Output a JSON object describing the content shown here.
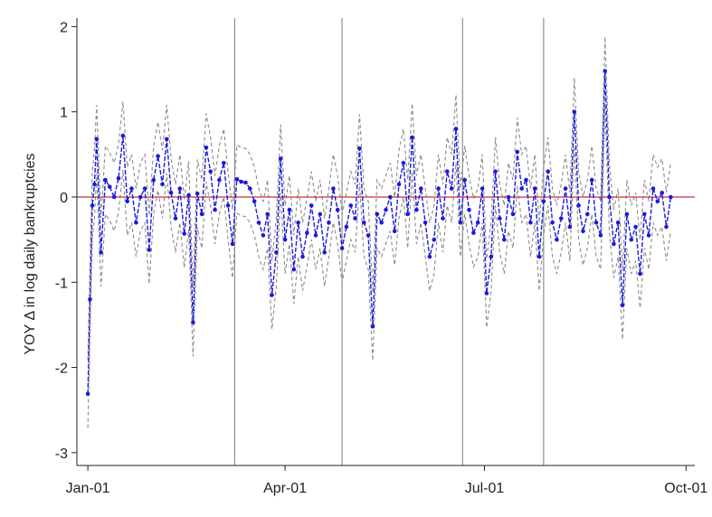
{
  "chart_data": {
    "type": "line",
    "title": "",
    "xlabel": "",
    "ylabel": "YOY Δ in log daily bankruptcies",
    "ylim": [
      -3.15,
      2.1
    ],
    "yticks": [
      -3,
      -2,
      -1,
      0,
      1,
      2
    ],
    "ytick_labels": [
      "-3",
      "-2",
      "-1",
      "0",
      "1",
      "2"
    ],
    "xlim": [
      "2000-12-27",
      "2001-10-05"
    ],
    "xticks": [
      "2001-01-01",
      "2001-04-01",
      "2001-07-01",
      "2001-10-01"
    ],
    "xtick_labels": [
      "Jan-01",
      "Apr-01",
      "Jul-01",
      "Oct-01"
    ],
    "reference_line": {
      "y": 0,
      "color": "#c8323c"
    },
    "vertical_lines": [
      "2001-03-09",
      "2001-04-27",
      "2001-06-21",
      "2001-07-28"
    ],
    "grid": false,
    "legend": "none",
    "series_style": [
      {
        "role": "estimate",
        "color": "#1a1adc",
        "line": "dashed",
        "markers": true
      },
      {
        "role": "confidence band",
        "color": "#8a8a8a",
        "line": "dashed",
        "markers": false
      }
    ],
    "confidence_halfwidth": 0.4,
    "series_points": [
      [
        "2001-01-01",
        -2.31
      ],
      [
        "2001-01-02",
        -1.2
      ],
      [
        "2001-01-03",
        -0.1
      ],
      [
        "2001-01-04",
        0.15
      ],
      [
        "2001-01-05",
        0.68
      ],
      [
        "2001-01-07",
        -0.65
      ],
      [
        "2001-01-09",
        0.2
      ],
      [
        "2001-01-11",
        0.12
      ],
      [
        "2001-01-13",
        0.0
      ],
      [
        "2001-01-15",
        0.22
      ],
      [
        "2001-01-17",
        0.72
      ],
      [
        "2001-01-19",
        -0.05
      ],
      [
        "2001-01-21",
        0.1
      ],
      [
        "2001-01-23",
        -0.3
      ],
      [
        "2001-01-25",
        0.0
      ],
      [
        "2001-01-27",
        0.1
      ],
      [
        "2001-01-29",
        -0.62
      ],
      [
        "2001-01-31",
        0.2
      ],
      [
        "2001-02-02",
        0.48
      ],
      [
        "2001-02-04",
        0.15
      ],
      [
        "2001-02-06",
        0.68
      ],
      [
        "2001-02-08",
        0.05
      ],
      [
        "2001-02-10",
        -0.25
      ],
      [
        "2001-02-12",
        0.1
      ],
      [
        "2001-02-14",
        -0.43
      ],
      [
        "2001-02-16",
        0.02
      ],
      [
        "2001-02-18",
        -1.47
      ],
      [
        "2001-02-20",
        0.04
      ],
      [
        "2001-02-22",
        -0.2
      ],
      [
        "2001-02-24",
        0.58
      ],
      [
        "2001-02-26",
        0.3
      ],
      [
        "2001-02-28",
        -0.15
      ],
      [
        "2001-03-02",
        0.2
      ],
      [
        "2001-03-04",
        0.4
      ],
      [
        "2001-03-06",
        -0.1
      ],
      [
        "2001-03-08",
        -0.55
      ],
      [
        "2001-03-10",
        0.21
      ],
      [
        "2001-03-12",
        0.18
      ],
      [
        "2001-03-14",
        0.17
      ],
      [
        "2001-03-16",
        0.1
      ],
      [
        "2001-03-18",
        -0.05
      ],
      [
        "2001-03-20",
        -0.3
      ],
      [
        "2001-03-22",
        -0.45
      ],
      [
        "2001-03-24",
        -0.2
      ],
      [
        "2001-03-26",
        -1.15
      ],
      [
        "2001-03-28",
        -0.65
      ],
      [
        "2001-03-30",
        0.45
      ],
      [
        "2001-04-01",
        -0.5
      ],
      [
        "2001-04-03",
        -0.15
      ],
      [
        "2001-04-05",
        -0.85
      ],
      [
        "2001-04-07",
        -0.3
      ],
      [
        "2001-04-09",
        -0.7
      ],
      [
        "2001-04-11",
        -0.42
      ],
      [
        "2001-04-13",
        -0.1
      ],
      [
        "2001-04-15",
        -0.45
      ],
      [
        "2001-04-17",
        -0.2
      ],
      [
        "2001-04-19",
        -0.65
      ],
      [
        "2001-04-21",
        -0.3
      ],
      [
        "2001-04-23",
        0.1
      ],
      [
        "2001-04-25",
        -0.15
      ],
      [
        "2001-04-27",
        -0.6
      ],
      [
        "2001-04-29",
        -0.35
      ],
      [
        "2001-05-01",
        -0.1
      ],
      [
        "2001-05-03",
        -0.25
      ],
      [
        "2001-05-05",
        0.57
      ],
      [
        "2001-05-07",
        -0.3
      ],
      [
        "2001-05-09",
        -0.45
      ],
      [
        "2001-05-11",
        -1.52
      ],
      [
        "2001-05-13",
        -0.2
      ],
      [
        "2001-05-15",
        -0.3
      ],
      [
        "2001-05-17",
        -0.15
      ],
      [
        "2001-05-19",
        0.0
      ],
      [
        "2001-05-21",
        -0.4
      ],
      [
        "2001-05-23",
        0.15
      ],
      [
        "2001-05-25",
        0.4
      ],
      [
        "2001-05-27",
        -0.2
      ],
      [
        "2001-05-29",
        0.7
      ],
      [
        "2001-05-31",
        -0.15
      ],
      [
        "2001-06-02",
        0.1
      ],
      [
        "2001-06-04",
        -0.3
      ],
      [
        "2001-06-06",
        -0.7
      ],
      [
        "2001-06-08",
        -0.5
      ],
      [
        "2001-06-10",
        0.1
      ],
      [
        "2001-06-12",
        -0.25
      ],
      [
        "2001-06-14",
        0.3
      ],
      [
        "2001-06-16",
        0.1
      ],
      [
        "2001-06-18",
        0.8
      ],
      [
        "2001-06-20",
        -0.3
      ],
      [
        "2001-06-22",
        0.2
      ],
      [
        "2001-06-24",
        -0.15
      ],
      [
        "2001-06-26",
        -0.42
      ],
      [
        "2001-06-28",
        -0.3
      ],
      [
        "2001-06-30",
        0.1
      ],
      [
        "2001-07-02",
        -1.13
      ],
      [
        "2001-07-04",
        -0.7
      ],
      [
        "2001-07-06",
        0.3
      ],
      [
        "2001-07-08",
        -0.25
      ],
      [
        "2001-07-10",
        -0.5
      ],
      [
        "2001-07-12",
        0.0
      ],
      [
        "2001-07-14",
        -0.2
      ],
      [
        "2001-07-16",
        0.53
      ],
      [
        "2001-07-18",
        0.1
      ],
      [
        "2001-07-20",
        0.2
      ],
      [
        "2001-07-22",
        -0.3
      ],
      [
        "2001-07-24",
        0.1
      ],
      [
        "2001-07-26",
        -0.7
      ],
      [
        "2001-07-28",
        -0.05
      ],
      [
        "2001-07-30",
        0.3
      ],
      [
        "2001-08-01",
        -0.3
      ],
      [
        "2001-08-03",
        -0.5
      ],
      [
        "2001-08-05",
        -0.25
      ],
      [
        "2001-08-07",
        0.1
      ],
      [
        "2001-08-09",
        -0.35
      ],
      [
        "2001-08-11",
        1.0
      ],
      [
        "2001-08-13",
        -0.1
      ],
      [
        "2001-08-15",
        -0.4
      ],
      [
        "2001-08-17",
        -0.2
      ],
      [
        "2001-08-19",
        0.2
      ],
      [
        "2001-08-21",
        -0.3
      ],
      [
        "2001-08-23",
        -0.45
      ],
      [
        "2001-08-25",
        1.48
      ],
      [
        "2001-08-27",
        0.0
      ],
      [
        "2001-08-29",
        -0.55
      ],
      [
        "2001-08-31",
        -0.3
      ],
      [
        "2001-09-02",
        -1.27
      ],
      [
        "2001-09-04",
        -0.2
      ],
      [
        "2001-09-06",
        -0.5
      ],
      [
        "2001-09-08",
        -0.35
      ],
      [
        "2001-09-10",
        -0.9
      ],
      [
        "2001-09-12",
        -0.2
      ],
      [
        "2001-09-14",
        -0.45
      ],
      [
        "2001-09-16",
        0.1
      ],
      [
        "2001-09-18",
        -0.05
      ],
      [
        "2001-09-20",
        0.05
      ],
      [
        "2001-09-22",
        -0.35
      ],
      [
        "2001-09-24",
        0.0
      ]
    ]
  }
}
